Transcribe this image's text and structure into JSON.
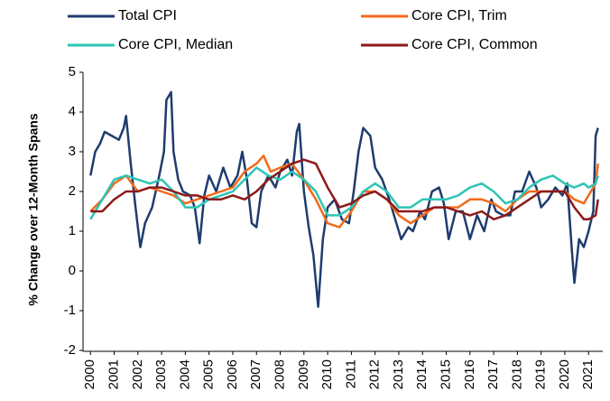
{
  "chart_data": {
    "type": "line",
    "y_label": "% Change over 12-Month Spans",
    "xlim": [
      1999.8,
      2021.6
    ],
    "xticks": [
      2000,
      2001,
      2002,
      2003,
      2004,
      2005,
      2006,
      2007,
      2008,
      2009,
      2010,
      2011,
      2012,
      2013,
      2014,
      2015,
      2016,
      2017,
      2018,
      2019,
      2020,
      2021
    ],
    "ylim": [
      -2,
      5
    ],
    "yticks": [
      -2,
      -1,
      0,
      1,
      2,
      3,
      4,
      5
    ],
    "grid": false,
    "series": [
      {
        "name": "Total CPI",
        "color": "#1f3c6e",
        "x": [
          2000.0,
          2000.2,
          2000.4,
          2000.6,
          2000.9,
          2001.2,
          2001.4,
          2001.5,
          2001.7,
          2001.9,
          2002.0,
          2002.1,
          2002.3,
          2002.6,
          2002.9,
          2003.1,
          2003.2,
          2003.4,
          2003.5,
          2003.7,
          2003.9,
          2004.2,
          2004.4,
          2004.6,
          2004.8,
          2005.0,
          2005.3,
          2005.6,
          2005.9,
          2006.2,
          2006.4,
          2006.6,
          2006.8,
          2007.0,
          2007.2,
          2007.5,
          2007.8,
          2008.0,
          2008.3,
          2008.5,
          2008.7,
          2008.8,
          2009.0,
          2009.2,
          2009.4,
          2009.6,
          2009.8,
          2010.0,
          2010.3,
          2010.6,
          2010.9,
          2011.1,
          2011.3,
          2011.5,
          2011.8,
          2012.0,
          2012.3,
          2012.6,
          2012.9,
          2013.1,
          2013.4,
          2013.6,
          2013.9,
          2014.1,
          2014.4,
          2014.7,
          2014.9,
          2015.1,
          2015.4,
          2015.7,
          2016.0,
          2016.3,
          2016.6,
          2016.9,
          2017.1,
          2017.4,
          2017.7,
          2017.9,
          2018.2,
          2018.5,
          2018.8,
          2019.0,
          2019.3,
          2019.6,
          2019.9,
          2020.1,
          2020.3,
          2020.4,
          2020.6,
          2020.8,
          2021.0,
          2021.2,
          2021.3,
          2021.4
        ],
        "values": [
          2.4,
          3.0,
          3.2,
          3.5,
          3.4,
          3.3,
          3.6,
          3.9,
          2.7,
          1.6,
          1.1,
          0.6,
          1.2,
          1.6,
          2.4,
          3.0,
          4.3,
          4.5,
          3.0,
          2.3,
          2.0,
          1.9,
          1.6,
          0.7,
          1.9,
          2.4,
          2.0,
          2.6,
          2.1,
          2.4,
          3.0,
          2.3,
          1.2,
          1.1,
          2.0,
          2.4,
          2.1,
          2.5,
          2.8,
          2.4,
          3.5,
          3.7,
          2.0,
          1.1,
          0.4,
          -0.9,
          0.8,
          1.6,
          1.8,
          1.3,
          1.2,
          2.0,
          3.0,
          3.6,
          3.4,
          2.6,
          2.3,
          1.8,
          1.2,
          0.8,
          1.1,
          1.0,
          1.5,
          1.3,
          2.0,
          2.1,
          1.7,
          0.8,
          1.5,
          1.5,
          0.8,
          1.4,
          1.0,
          1.8,
          1.5,
          1.4,
          1.4,
          2.0,
          2.0,
          2.5,
          2.1,
          1.6,
          1.8,
          2.1,
          1.9,
          2.2,
          0.5,
          -0.3,
          0.8,
          0.6,
          1.0,
          1.5,
          3.4,
          3.6
        ]
      },
      {
        "name": "Core CPI, Trim",
        "color": "#f26a1b",
        "x": [
          2000,
          2000.5,
          2001,
          2001.5,
          2002,
          2002.5,
          2003,
          2003.5,
          2004,
          2004.5,
          2005,
          2005.5,
          2006,
          2006.5,
          2007,
          2007.3,
          2007.6,
          2008,
          2008.5,
          2009,
          2009.5,
          2010,
          2010.5,
          2011,
          2011.5,
          2012,
          2012.5,
          2013,
          2013.5,
          2014,
          2014.5,
          2015,
          2015.5,
          2016,
          2016.5,
          2017,
          2017.5,
          2018,
          2018.5,
          2019,
          2019.5,
          2020,
          2020.4,
          2020.8,
          2021,
          2021.3,
          2021.4
        ],
        "values": [
          1.5,
          1.8,
          2.2,
          2.4,
          2.0,
          2.1,
          2.0,
          1.9,
          1.7,
          1.8,
          1.9,
          2.0,
          2.1,
          2.5,
          2.7,
          2.9,
          2.5,
          2.6,
          2.7,
          2.3,
          1.8,
          1.2,
          1.1,
          1.5,
          2.0,
          2.0,
          1.8,
          1.4,
          1.2,
          1.4,
          1.6,
          1.6,
          1.6,
          1.8,
          1.8,
          1.7,
          1.5,
          1.8,
          2.0,
          2.0,
          2.0,
          2.0,
          1.8,
          1.7,
          1.9,
          2.2,
          2.7
        ]
      },
      {
        "name": "Core CPI, Median",
        "color": "#2ec4b6",
        "x": [
          2000,
          2000.5,
          2001,
          2001.5,
          2002,
          2002.5,
          2003,
          2003.5,
          2004,
          2004.5,
          2005,
          2005.5,
          2006,
          2006.5,
          2007,
          2007.5,
          2008,
          2008.5,
          2009,
          2009.5,
          2010,
          2010.5,
          2011,
          2011.5,
          2012,
          2012.5,
          2013,
          2013.5,
          2014,
          2014.5,
          2015,
          2015.5,
          2016,
          2016.5,
          2017,
          2017.5,
          2018,
          2018.5,
          2019,
          2019.5,
          2020,
          2020.4,
          2020.8,
          2021,
          2021.3,
          2021.4
        ],
        "values": [
          1.3,
          1.8,
          2.3,
          2.4,
          2.3,
          2.2,
          2.3,
          2.0,
          1.6,
          1.6,
          1.8,
          1.9,
          2.0,
          2.3,
          2.6,
          2.4,
          2.3,
          2.5,
          2.3,
          2.0,
          1.4,
          1.4,
          1.6,
          2.0,
          2.2,
          2.0,
          1.6,
          1.6,
          1.8,
          1.8,
          1.8,
          1.9,
          2.1,
          2.2,
          2.0,
          1.7,
          1.8,
          2.1,
          2.3,
          2.4,
          2.2,
          2.1,
          2.2,
          2.1,
          2.2,
          2.4
        ]
      },
      {
        "name": "Core CPI, Common",
        "color": "#8b1a1a",
        "x": [
          2000,
          2000.5,
          2001,
          2001.5,
          2002,
          2002.5,
          2003,
          2003.5,
          2004,
          2004.5,
          2005,
          2005.5,
          2006,
          2006.5,
          2007,
          2007.5,
          2008,
          2008.5,
          2009,
          2009.5,
          2010,
          2010.5,
          2011,
          2011.5,
          2012,
          2012.5,
          2013,
          2013.5,
          2014,
          2014.5,
          2015,
          2015.5,
          2016,
          2016.5,
          2017,
          2017.5,
          2018,
          2018.5,
          2019,
          2019.5,
          2020,
          2020.4,
          2020.8,
          2021,
          2021.3,
          2021.4
        ],
        "values": [
          1.5,
          1.5,
          1.8,
          2.0,
          2.0,
          2.1,
          2.1,
          2.0,
          1.9,
          1.9,
          1.8,
          1.8,
          1.9,
          1.8,
          2.0,
          2.3,
          2.5,
          2.7,
          2.8,
          2.7,
          2.1,
          1.6,
          1.7,
          1.9,
          2.0,
          1.8,
          1.5,
          1.5,
          1.5,
          1.6,
          1.6,
          1.5,
          1.4,
          1.5,
          1.3,
          1.4,
          1.6,
          1.8,
          2.0,
          2.0,
          2.0,
          1.6,
          1.3,
          1.3,
          1.4,
          1.8
        ]
      }
    ]
  }
}
